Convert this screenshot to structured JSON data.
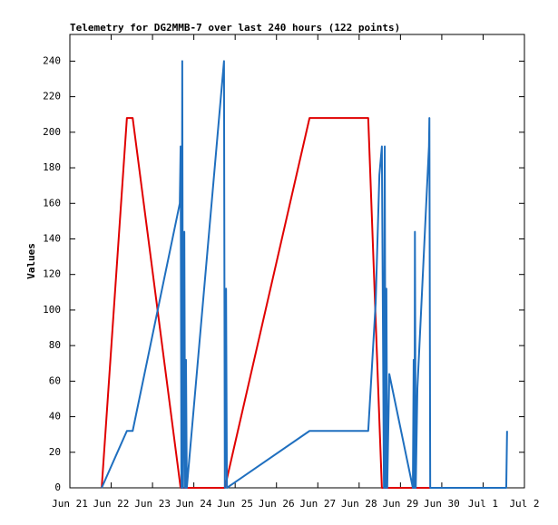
{
  "chart_data": {
    "type": "line",
    "title": "Telemetry for DG2MMB-7 over last 240 hours (122 points)",
    "y_label": "Values",
    "xlim": [
      21,
      32
    ],
    "xticks": [
      {
        "value": 21,
        "label": "Jun 21"
      },
      {
        "value": 22,
        "label": "Jun 22"
      },
      {
        "value": 23,
        "label": "Jun 23"
      },
      {
        "value": 24,
        "label": "Jun 24"
      },
      {
        "value": 25,
        "label": "Jun 25"
      },
      {
        "value": 26,
        "label": "Jun 26"
      },
      {
        "value": 27,
        "label": "Jun 27"
      },
      {
        "value": 28,
        "label": "Jun 28"
      },
      {
        "value": 29,
        "label": "Jun 29"
      },
      {
        "value": 30,
        "label": "Jun 30"
      },
      {
        "value": 31,
        "label": "Jul 1"
      },
      {
        "value": 32,
        "label": "Jul 2"
      }
    ],
    "ylim": [
      0,
      255
    ],
    "yticks": [
      0,
      20,
      40,
      60,
      80,
      100,
      120,
      140,
      160,
      180,
      200,
      220,
      240
    ],
    "grid": false,
    "series": [
      {
        "color": "#e00000",
        "x": [
          21.77,
          22.38,
          22.52,
          23.68,
          24.75,
          26.8,
          28.22,
          28.55,
          31.56
        ],
        "values": [
          0,
          208,
          208,
          0,
          0,
          208,
          208,
          0,
          0
        ]
      },
      {
        "color": "#1f6fbf",
        "x": [
          21.77,
          22.38,
          22.52,
          23.66,
          23.68,
          23.7,
          23.72,
          23.74,
          23.77,
          23.79,
          23.81,
          23.83,
          24.73,
          24.75,
          24.78,
          24.8,
          26.8,
          28.22,
          28.4,
          28.49,
          28.55,
          28.6,
          28.62,
          28.64,
          28.66,
          28.68,
          28.73,
          29.3,
          29.32,
          29.34,
          29.35,
          29.37,
          29.41,
          29.69,
          29.7,
          29.72,
          31.56,
          31.58
        ],
        "values": [
          0,
          32,
          32,
          160,
          192,
          0,
          240,
          0,
          144,
          0,
          72,
          0,
          240,
          0,
          112,
          0,
          32,
          32,
          104,
          176,
          192,
          0,
          192,
          0,
          112,
          0,
          64,
          0,
          72,
          0,
          144,
          0,
          56,
          192,
          208,
          0,
          0,
          32
        ]
      }
    ]
  }
}
